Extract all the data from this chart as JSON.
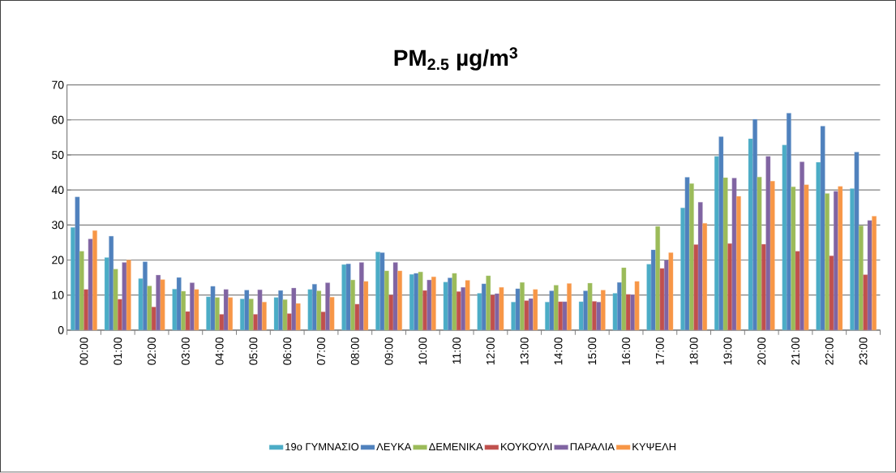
{
  "chart_data": {
    "type": "bar",
    "title": "PM$_{2.5}$ µg/m$^{3}$",
    "categories": [
      "00:00",
      "01:00",
      "02:00",
      "03:00",
      "04:00",
      "05:00",
      "06:00",
      "07:00",
      "08:00",
      "09:00",
      "10:00",
      "11:00",
      "12:00",
      "13:00",
      "14:00",
      "15:00",
      "16:00",
      "17:00",
      "18:00",
      "19:00",
      "20:00",
      "21:00",
      "22:00",
      "23:00"
    ],
    "series": [
      {
        "name": "19o ΓΥΜΝΑΣΙΟ",
        "color": "#4bacc6",
        "values": [
          29.3,
          20.7,
          14.7,
          11.7,
          9.5,
          8.9,
          9.3,
          11.6,
          18.7,
          22.3,
          15.9,
          13.7,
          10.5,
          8.0,
          8.0,
          8.1,
          10.5,
          18.8,
          34.9,
          49.6,
          54.6,
          52.8,
          47.9,
          40.4
        ]
      },
      {
        "name": "ΛΕΥΚΑ",
        "color": "#4f81bd",
        "values": [
          38.0,
          26.8,
          19.5,
          15.0,
          12.5,
          11.4,
          11.3,
          13.1,
          18.9,
          22.1,
          16.2,
          14.9,
          13.2,
          11.8,
          11.2,
          11.2,
          13.6,
          22.9,
          43.6,
          55.2,
          60.2,
          61.9,
          58.2,
          50.8
        ]
      },
      {
        "name": "ΔΕΜΕΝΙΚΑ",
        "color": "#9bbb59",
        "values": [
          22.5,
          17.4,
          12.6,
          11.1,
          9.3,
          8.9,
          8.7,
          11.2,
          14.3,
          16.9,
          16.6,
          16.2,
          15.5,
          13.6,
          12.8,
          13.4,
          17.8,
          29.6,
          41.8,
          43.5,
          43.7,
          40.9,
          39.0,
          29.8
        ]
      },
      {
        "name": "ΚΟΥΚΟΥΛΙ",
        "color": "#c0504d",
        "values": [
          11.6,
          8.8,
          6.6,
          5.3,
          4.5,
          4.5,
          4.7,
          5.2,
          7.4,
          10.0,
          11.3,
          11.0,
          10.0,
          8.4,
          8.1,
          8.2,
          10.2,
          17.6,
          24.4,
          24.7,
          24.5,
          22.5,
          21.2,
          15.8
        ]
      },
      {
        "name": "ΠΑΡΑΛΙΑ",
        "color": "#8064a2",
        "values": [
          26.0,
          19.3,
          15.7,
          13.5,
          11.6,
          11.5,
          12.0,
          13.5,
          19.3,
          19.3,
          14.3,
          12.2,
          10.4,
          9.0,
          8.1,
          8.0,
          10.1,
          19.9,
          36.5,
          43.4,
          49.6,
          48.0,
          39.6,
          31.3
        ]
      },
      {
        "name": "ΚΥΨΕΛΗ",
        "color": "#f79646",
        "values": [
          28.4,
          20.0,
          14.4,
          11.6,
          9.3,
          8.0,
          7.6,
          9.4,
          13.9,
          16.9,
          15.2,
          14.2,
          12.2,
          11.6,
          13.3,
          11.4,
          13.9,
          22.1,
          30.5,
          38.2,
          42.5,
          41.5,
          41.0,
          32.5
        ]
      }
    ],
    "ylim": [
      0,
      70
    ],
    "yticks": [
      0,
      10,
      20,
      30,
      40,
      50,
      60,
      70
    ],
    "grid": "y",
    "legend": "bottom"
  }
}
